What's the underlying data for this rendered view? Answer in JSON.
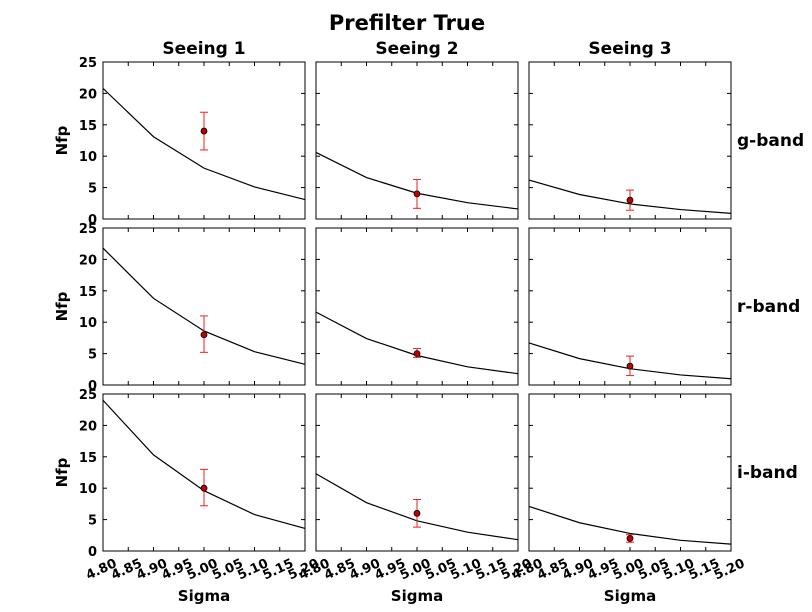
{
  "title": "Prefilter True",
  "chart_data": {
    "type": "line",
    "title": "Prefilter True",
    "columns": [
      "Seeing 1",
      "Seeing 2",
      "Seeing 3"
    ],
    "rows": [
      "g-band",
      "r-band",
      "i-band"
    ],
    "xlabel": "Sigma",
    "ylabel": "Nfp",
    "xlim": [
      4.8,
      5.2
    ],
    "ylim": [
      0,
      25
    ],
    "xticks": [
      "4.80",
      "4.85",
      "4.90",
      "4.95",
      "5.00",
      "5.05",
      "5.10",
      "5.15",
      "5.20"
    ],
    "yticks": [
      "0",
      "5",
      "10",
      "15",
      "20",
      "25"
    ],
    "curve_x": [
      4.8,
      4.9,
      5.0,
      5.1,
      5.2
    ],
    "panels": [
      {
        "row": "g-band",
        "column": "Seeing 1",
        "curve_y": [
          20.8,
          13.1,
          8.1,
          5.1,
          3.1
        ],
        "point": {
          "x": 5.0,
          "y": 14.0,
          "err_low": 11.0,
          "err_high": 17.0
        }
      },
      {
        "row": "g-band",
        "column": "Seeing 2",
        "curve_y": [
          10.6,
          6.6,
          4.1,
          2.6,
          1.6
        ],
        "point": {
          "x": 5.0,
          "y": 4.0,
          "err_low": 1.7,
          "err_high": 6.3
        }
      },
      {
        "row": "g-band",
        "column": "Seeing 3",
        "curve_y": [
          6.2,
          3.9,
          2.4,
          1.5,
          0.9
        ],
        "point": {
          "x": 5.0,
          "y": 3.0,
          "err_low": 1.4,
          "err_high": 4.6
        }
      },
      {
        "row": "r-band",
        "column": "Seeing 1",
        "curve_y": [
          21.8,
          13.8,
          8.6,
          5.3,
          3.3
        ],
        "point": {
          "x": 5.0,
          "y": 8.0,
          "err_low": 5.2,
          "err_high": 11.0
        }
      },
      {
        "row": "r-band",
        "column": "Seeing 2",
        "curve_y": [
          11.6,
          7.4,
          4.7,
          2.9,
          1.8
        ],
        "point": {
          "x": 5.0,
          "y": 5.0,
          "err_low": 4.4,
          "err_high": 5.8
        }
      },
      {
        "row": "r-band",
        "column": "Seeing 3",
        "curve_y": [
          6.7,
          4.2,
          2.6,
          1.6,
          1.0
        ],
        "point": {
          "x": 5.0,
          "y": 3.0,
          "err_low": 1.5,
          "err_high": 4.6
        }
      },
      {
        "row": "i-band",
        "column": "Seeing 1",
        "curve_y": [
          24.0,
          15.3,
          9.6,
          5.8,
          3.6
        ],
        "point": {
          "x": 5.0,
          "y": 10.0,
          "err_low": 7.2,
          "err_high": 13.0
        }
      },
      {
        "row": "i-band",
        "column": "Seeing 2",
        "curve_y": [
          12.3,
          7.7,
          4.8,
          3.0,
          1.8
        ],
        "point": {
          "x": 5.0,
          "y": 6.0,
          "err_low": 3.8,
          "err_high": 8.2
        }
      },
      {
        "row": "i-band",
        "column": "Seeing 3",
        "curve_y": [
          7.1,
          4.5,
          2.8,
          1.7,
          1.1
        ],
        "point": {
          "x": 5.0,
          "y": 2.0,
          "err_low": 1.4,
          "err_high": 2.6
        }
      }
    ],
    "grid": false,
    "colors": {
      "curve": "#000000",
      "point": "#c00000",
      "errorbar": "#e8231f"
    }
  }
}
